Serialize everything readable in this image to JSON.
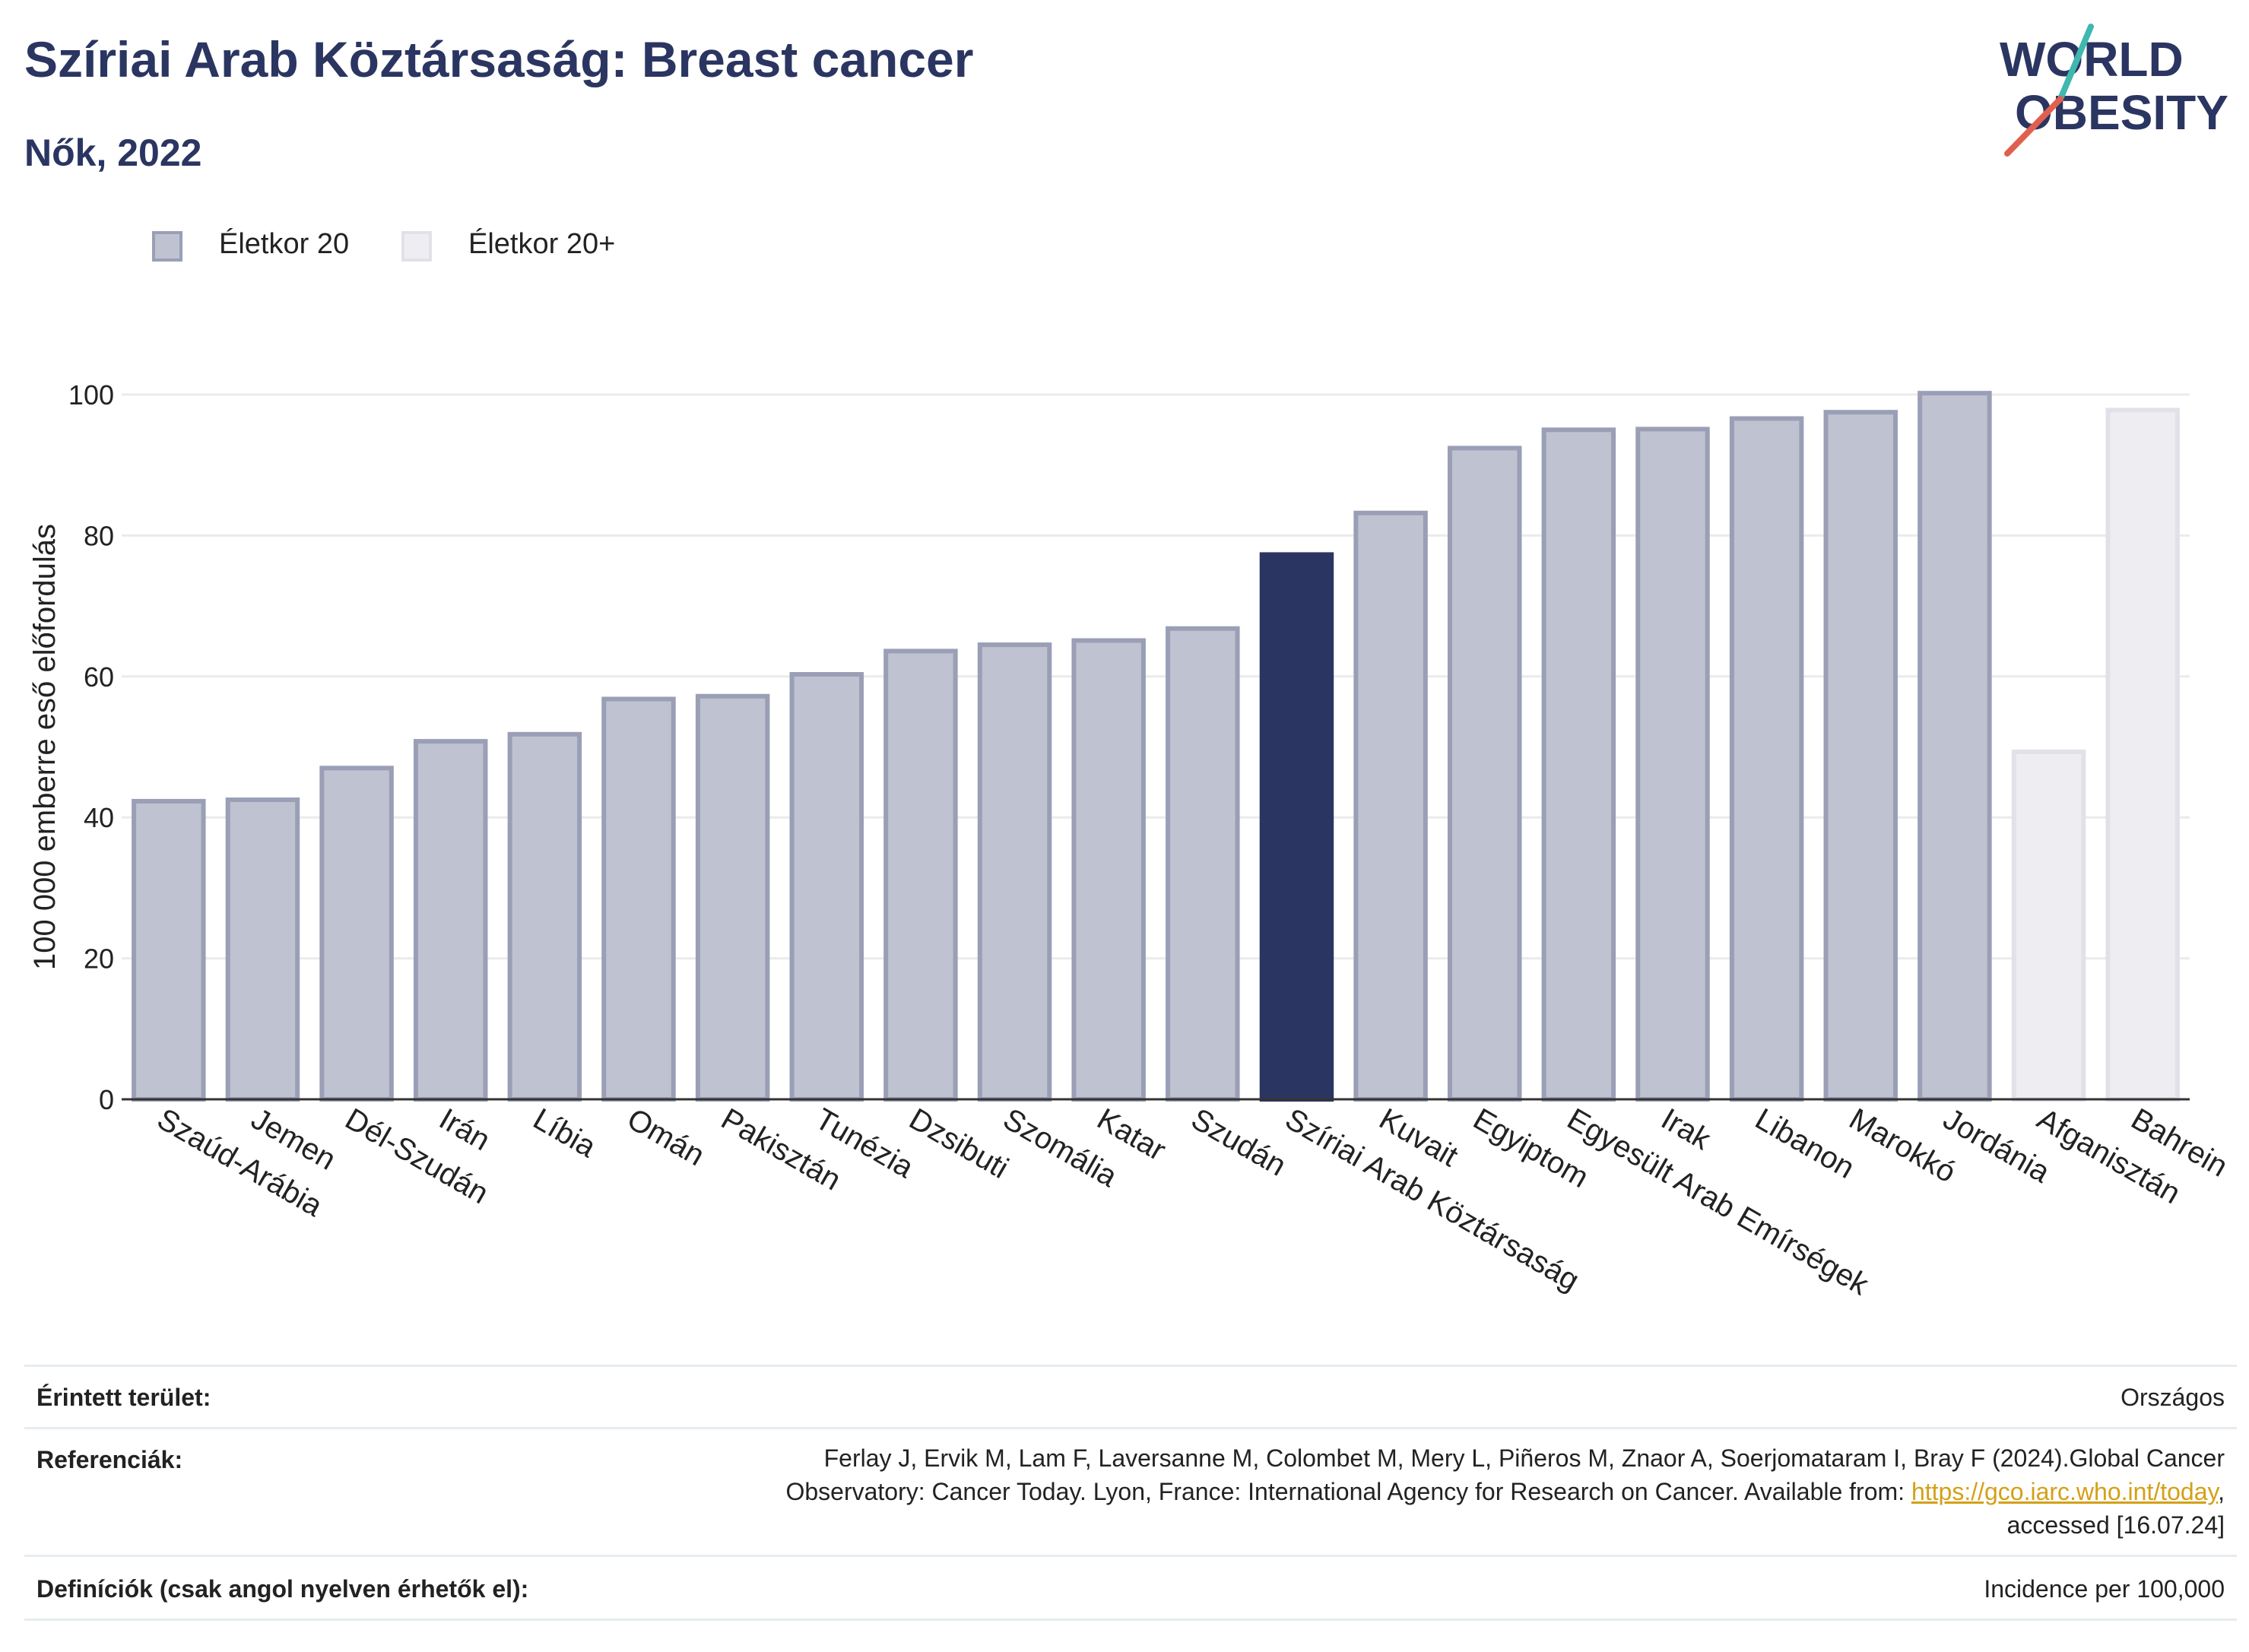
{
  "header": {
    "title": "Szíriai Arab Köztársaság: Breast cancer",
    "subtitle": "Nők, 2022"
  },
  "logo": {
    "line1": "WORLD",
    "line2": "OBESITY",
    "colors": {
      "text": "#2b3561",
      "stripe_teal": "#3fb8af",
      "stripe_red": "#e0604e"
    }
  },
  "legend": [
    {
      "label": "Életkor 20",
      "fill": "#bfc2d0",
      "stroke": "#9a9fb6"
    },
    {
      "label": "Életkor 20+",
      "fill": "#eeeef2",
      "stroke": "#e1e2e8"
    }
  ],
  "chart_data": {
    "type": "bar",
    "ylabel": "100 000 emberre eső előfordulás",
    "xlabel": "",
    "ylim": [
      0,
      100
    ],
    "yticks": [
      0,
      20,
      40,
      60,
      80,
      100
    ],
    "grid": true,
    "legend_position": "top-left",
    "categories": [
      "Szaúd-Arábia",
      "Jemen",
      "Dél-Szudán",
      "Irán",
      "Líbia",
      "Omán",
      "Pakisztán",
      "Tunézia",
      "Dzsibuti",
      "Szomália",
      "Katar",
      "Szudán",
      "Szíriai Arab Köztársaság",
      "Kuvait",
      "Egyiptom",
      "Egyesült Arab Emírségek",
      "Irak",
      "Libanon",
      "Marokkó",
      "Jordánia",
      "Afganisztán",
      "Bahrein"
    ],
    "values": [
      42.3,
      42.5,
      47.0,
      50.8,
      51.8,
      56.8,
      57.2,
      60.3,
      63.6,
      64.5,
      65.1,
      66.8,
      77.3,
      83.2,
      92.4,
      95.0,
      95.1,
      96.6,
      97.5,
      100.2,
      49.3,
      97.8
    ],
    "age_group": [
      "Életkor 20",
      "Életkor 20",
      "Életkor 20",
      "Életkor 20",
      "Életkor 20",
      "Életkor 20",
      "Életkor 20",
      "Életkor 20",
      "Életkor 20",
      "Életkor 20",
      "Életkor 20",
      "Életkor 20",
      "Életkor 20",
      "Életkor 20",
      "Életkor 20",
      "Életkor 20",
      "Életkor 20",
      "Életkor 20",
      "Életkor 20",
      "Életkor 20",
      "Életkor 20+",
      "Életkor 20+"
    ],
    "highlight": "Szíriai Arab Köztársaság",
    "colors": {
      "bar_fill": "#bfc2d0",
      "bar_stroke": "#9a9fb6",
      "highlight_fill": "#2b3561",
      "light_fill": "#eeeef2",
      "light_stroke": "#e1e2e8",
      "grid": "#ebebeb",
      "axis": "#333333"
    }
  },
  "footer": {
    "area_label": "Érintett terület:",
    "area_value": "Országos",
    "references_label": "Referenciák:",
    "references_line1": "Ferlay J, Ervik M, Lam F, Laversanne M, Colombet M, Mery L, Piñeros M, Znaor A, Soerjomataram I, Bray F (2024).Global Cancer",
    "references_line2_prefix": "Observatory: Cancer Today. Lyon, France: International Agency for Research on Cancer. Available from: ",
    "references_link": "https://gco.iarc.who.int/today",
    "references_line2_suffix": ",",
    "references_line3": "accessed [16.07.24]",
    "definitions_label": "Definíciók (csak angol nyelven érhetők el):",
    "definitions_value": "Incidence per 100,000"
  }
}
